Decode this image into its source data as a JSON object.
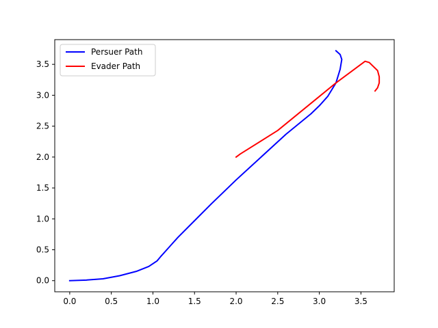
{
  "chart_data": {
    "type": "line",
    "title": "",
    "xlabel": "",
    "ylabel": "",
    "xlim": [
      -0.18,
      3.9
    ],
    "ylim": [
      -0.18,
      3.9
    ],
    "x_ticks": [
      0.0,
      0.5,
      1.0,
      1.5,
      2.0,
      2.5,
      3.0,
      3.5
    ],
    "x_tick_labels": [
      "0.0",
      "0.5",
      "1.0",
      "1.5",
      "2.0",
      "2.5",
      "3.0",
      "3.5"
    ],
    "y_ticks": [
      0.0,
      0.5,
      1.0,
      1.5,
      2.0,
      2.5,
      3.0,
      3.5
    ],
    "y_tick_labels": [
      "0.0",
      "0.5",
      "1.0",
      "1.5",
      "2.0",
      "2.5",
      "3.0",
      "3.5"
    ],
    "grid": false,
    "legend_position": "top-left",
    "series": [
      {
        "name": "Persuer Path",
        "color": "#0000ff",
        "points": [
          [
            0.0,
            0.0
          ],
          [
            0.2,
            0.01
          ],
          [
            0.4,
            0.03
          ],
          [
            0.6,
            0.08
          ],
          [
            0.8,
            0.15
          ],
          [
            0.95,
            0.23
          ],
          [
            1.05,
            0.32
          ],
          [
            1.1,
            0.4
          ],
          [
            1.2,
            0.55
          ],
          [
            1.3,
            0.7
          ],
          [
            1.5,
            0.97
          ],
          [
            1.7,
            1.24
          ],
          [
            2.0,
            1.63
          ],
          [
            2.3,
            2.0
          ],
          [
            2.6,
            2.37
          ],
          [
            2.9,
            2.7
          ],
          [
            3.0,
            2.83
          ],
          [
            3.1,
            2.98
          ],
          [
            3.2,
            3.2
          ],
          [
            3.25,
            3.42
          ],
          [
            3.27,
            3.58
          ],
          [
            3.25,
            3.66
          ],
          [
            3.2,
            3.72
          ]
        ]
      },
      {
        "name": "Evader Path",
        "color": "#ff0000",
        "points": [
          [
            2.0,
            2.0
          ],
          [
            2.05,
            2.05
          ],
          [
            2.5,
            2.43
          ],
          [
            3.0,
            2.98
          ],
          [
            3.2,
            3.2
          ],
          [
            3.55,
            3.55
          ],
          [
            3.6,
            3.53
          ],
          [
            3.7,
            3.4
          ],
          [
            3.72,
            3.3
          ],
          [
            3.72,
            3.2
          ],
          [
            3.7,
            3.12
          ],
          [
            3.67,
            3.07
          ]
        ]
      }
    ]
  }
}
